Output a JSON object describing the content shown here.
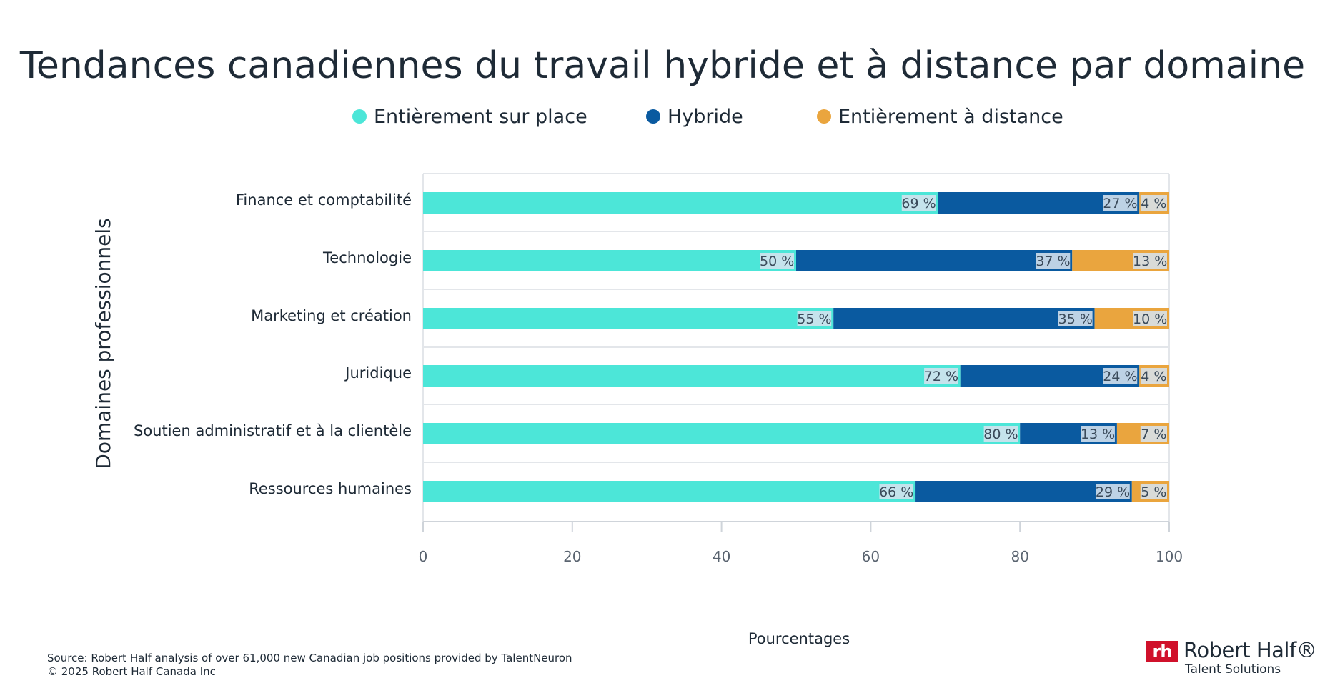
{
  "chart_data": {
    "type": "bar",
    "orientation": "horizontal",
    "stacked": true,
    "title": "Tendances canadiennes du travail hybride et à distance par domaine",
    "xlabel": "Pourcentages",
    "ylabel": "Domaines professionnels",
    "xlim": [
      0,
      100
    ],
    "xticks": [
      "0",
      "20",
      "40",
      "60",
      "80",
      "100"
    ],
    "categories": [
      "Finance et comptabilité",
      "Technologie",
      "Marketing et création",
      "Juridique",
      "Soutien administratif et à la clientèle",
      "Ressources humaines"
    ],
    "series": [
      {
        "name": "Entièrement sur place",
        "color": "#4ce6d8",
        "values": [
          69,
          50,
          55,
          72,
          80,
          66
        ],
        "labels": [
          "69 %",
          "50 %",
          "55 %",
          "72 %",
          "80 %",
          "66 %"
        ]
      },
      {
        "name": "Hybride",
        "color": "#0a5aa0",
        "values": [
          27,
          37,
          35,
          24,
          13,
          29
        ],
        "labels": [
          "27 %",
          "37 %",
          "35 %",
          "24 %",
          "13 %",
          "29 %"
        ]
      },
      {
        "name": "Entièrement  à distance",
        "color": "#eaa53e",
        "values": [
          4,
          13,
          10,
          4,
          7,
          5
        ],
        "labels": [
          "4 %",
          "13 %",
          "10 %",
          "4 %",
          "7 %",
          "5 %"
        ]
      }
    ],
    "legend_position": "top-center",
    "grid": true
  },
  "footer": {
    "source": "Source: Robert Half analysis of over 61,000 new Canadian job positions provided by TalentNeuron",
    "copyright": "© 2025 Robert Half Canada Inc"
  },
  "logo": {
    "mark": "rh",
    "name": "Robert Half®",
    "tagline": "Talent Solutions",
    "color": "#d0112b"
  }
}
